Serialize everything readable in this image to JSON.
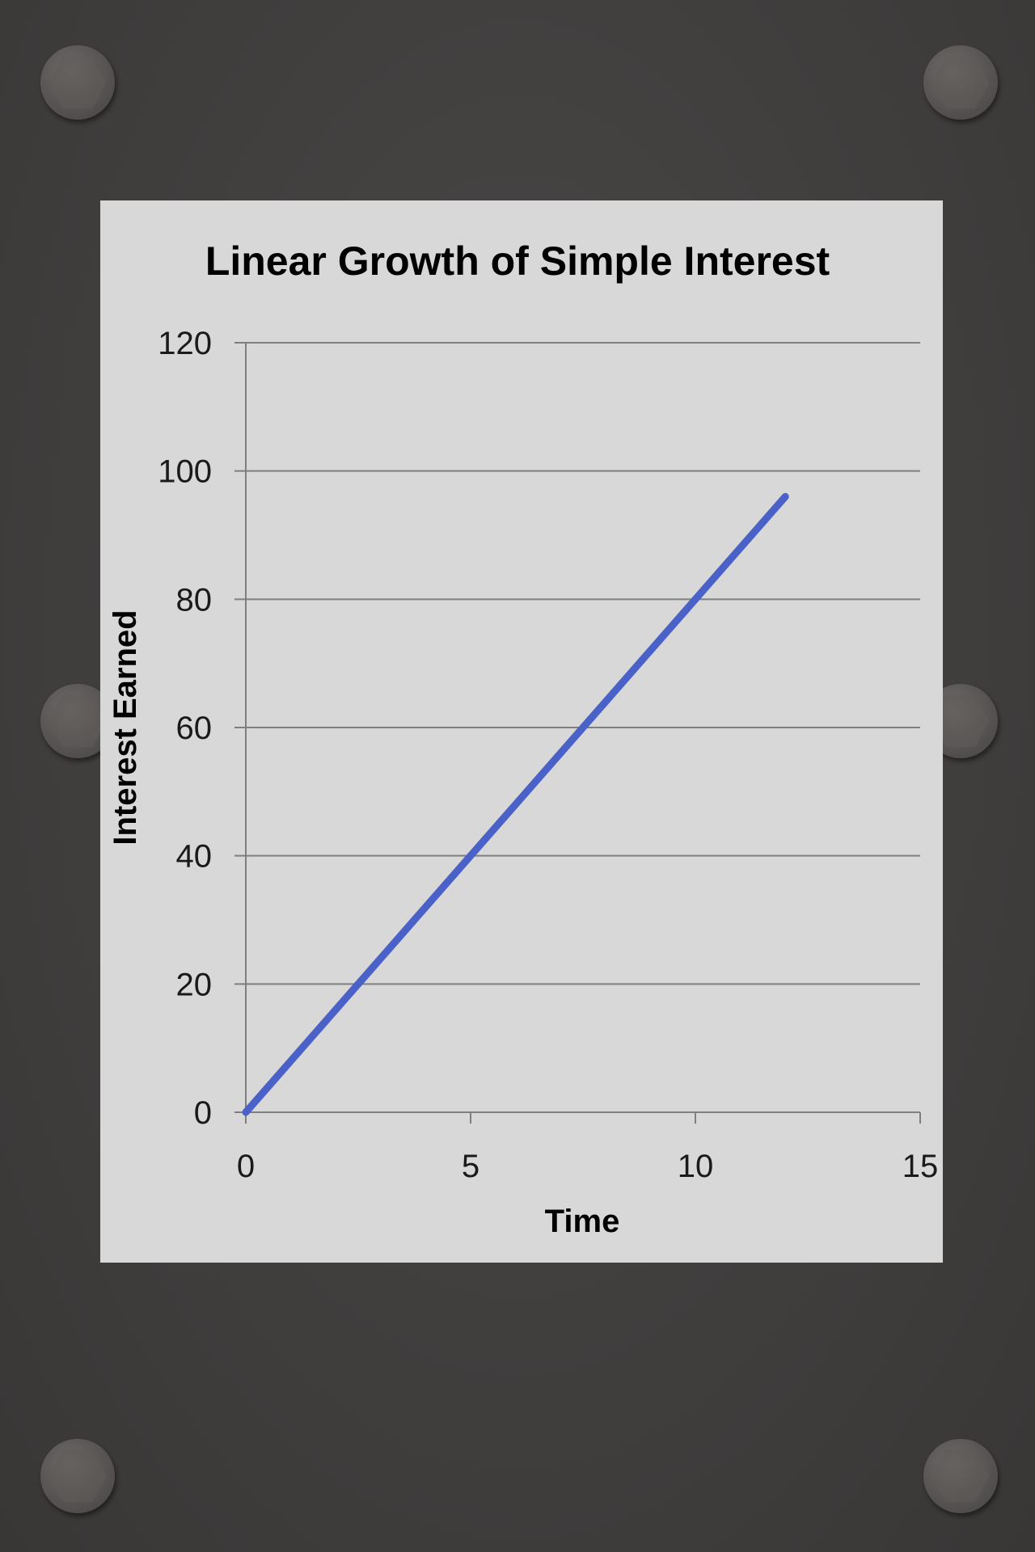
{
  "chart_data": {
    "type": "line",
    "title": "Linear Growth of Simple Interest",
    "xlabel": "Time",
    "ylabel": "Interest Earned",
    "xlim": [
      0,
      15
    ],
    "ylim": [
      0,
      120
    ],
    "xticks": [
      "0",
      "5",
      "10",
      "15"
    ],
    "yticks": [
      "0",
      "20",
      "40",
      "60",
      "80",
      "100",
      "120"
    ],
    "grid": "horizontal",
    "legend": "none",
    "series": [
      {
        "x": [
          0,
          12
        ],
        "values": [
          0,
          96
        ],
        "color": "#4a62c8"
      }
    ],
    "colors": {
      "line": "#4a62c8",
      "grid": "#7f7f7f",
      "background": "#d8d8d8"
    }
  }
}
